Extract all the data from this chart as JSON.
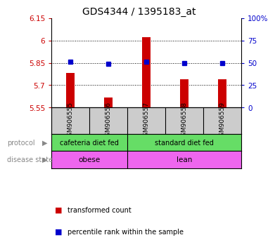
{
  "title": "GDS4344 / 1395183_at",
  "samples": [
    "GSM906555",
    "GSM906556",
    "GSM906557",
    "GSM906558",
    "GSM906559"
  ],
  "bar_values": [
    5.78,
    5.62,
    6.02,
    5.74,
    5.74
  ],
  "bar_baseline": 5.55,
  "bar_color": "#cc0000",
  "dot_values": [
    5.855,
    5.845,
    5.857,
    5.849,
    5.849
  ],
  "dot_color": "#0000cc",
  "ylim_left": [
    5.55,
    6.15
  ],
  "yticks_left": [
    5.55,
    5.7,
    5.85,
    6.0,
    6.15
  ],
  "ytick_labels_left": [
    "5.55",
    "5.7",
    "5.85",
    "6",
    "6.15"
  ],
  "ylim_right": [
    0,
    100
  ],
  "yticks_right": [
    0,
    25,
    50,
    75,
    100
  ],
  "ytick_labels_right": [
    "0",
    "25",
    "50",
    "75",
    "100%"
  ],
  "hlines": [
    5.7,
    5.85,
    6.0
  ],
  "protocol_labels": [
    "cafeteria diet fed",
    "standard diet fed"
  ],
  "protocol_splits": [
    1.5
  ],
  "protocol_group_centers": [
    0.5,
    3.0
  ],
  "disease_labels": [
    "obese",
    "lean"
  ],
  "disease_splits": [
    1.5
  ],
  "disease_group_centers": [
    0.5,
    3.0
  ],
  "protocol_color": "#66dd66",
  "disease_color": "#ee66ee",
  "legend_bar_label": "transformed count",
  "legend_dot_label": "percentile rank within the sample",
  "sample_box_color": "#cccccc",
  "background_color": "#ffffff",
  "left_label_color": "#cc0000",
  "right_label_color": "#0000cc",
  "row_label_color": "#888888",
  "bar_width": 0.22
}
